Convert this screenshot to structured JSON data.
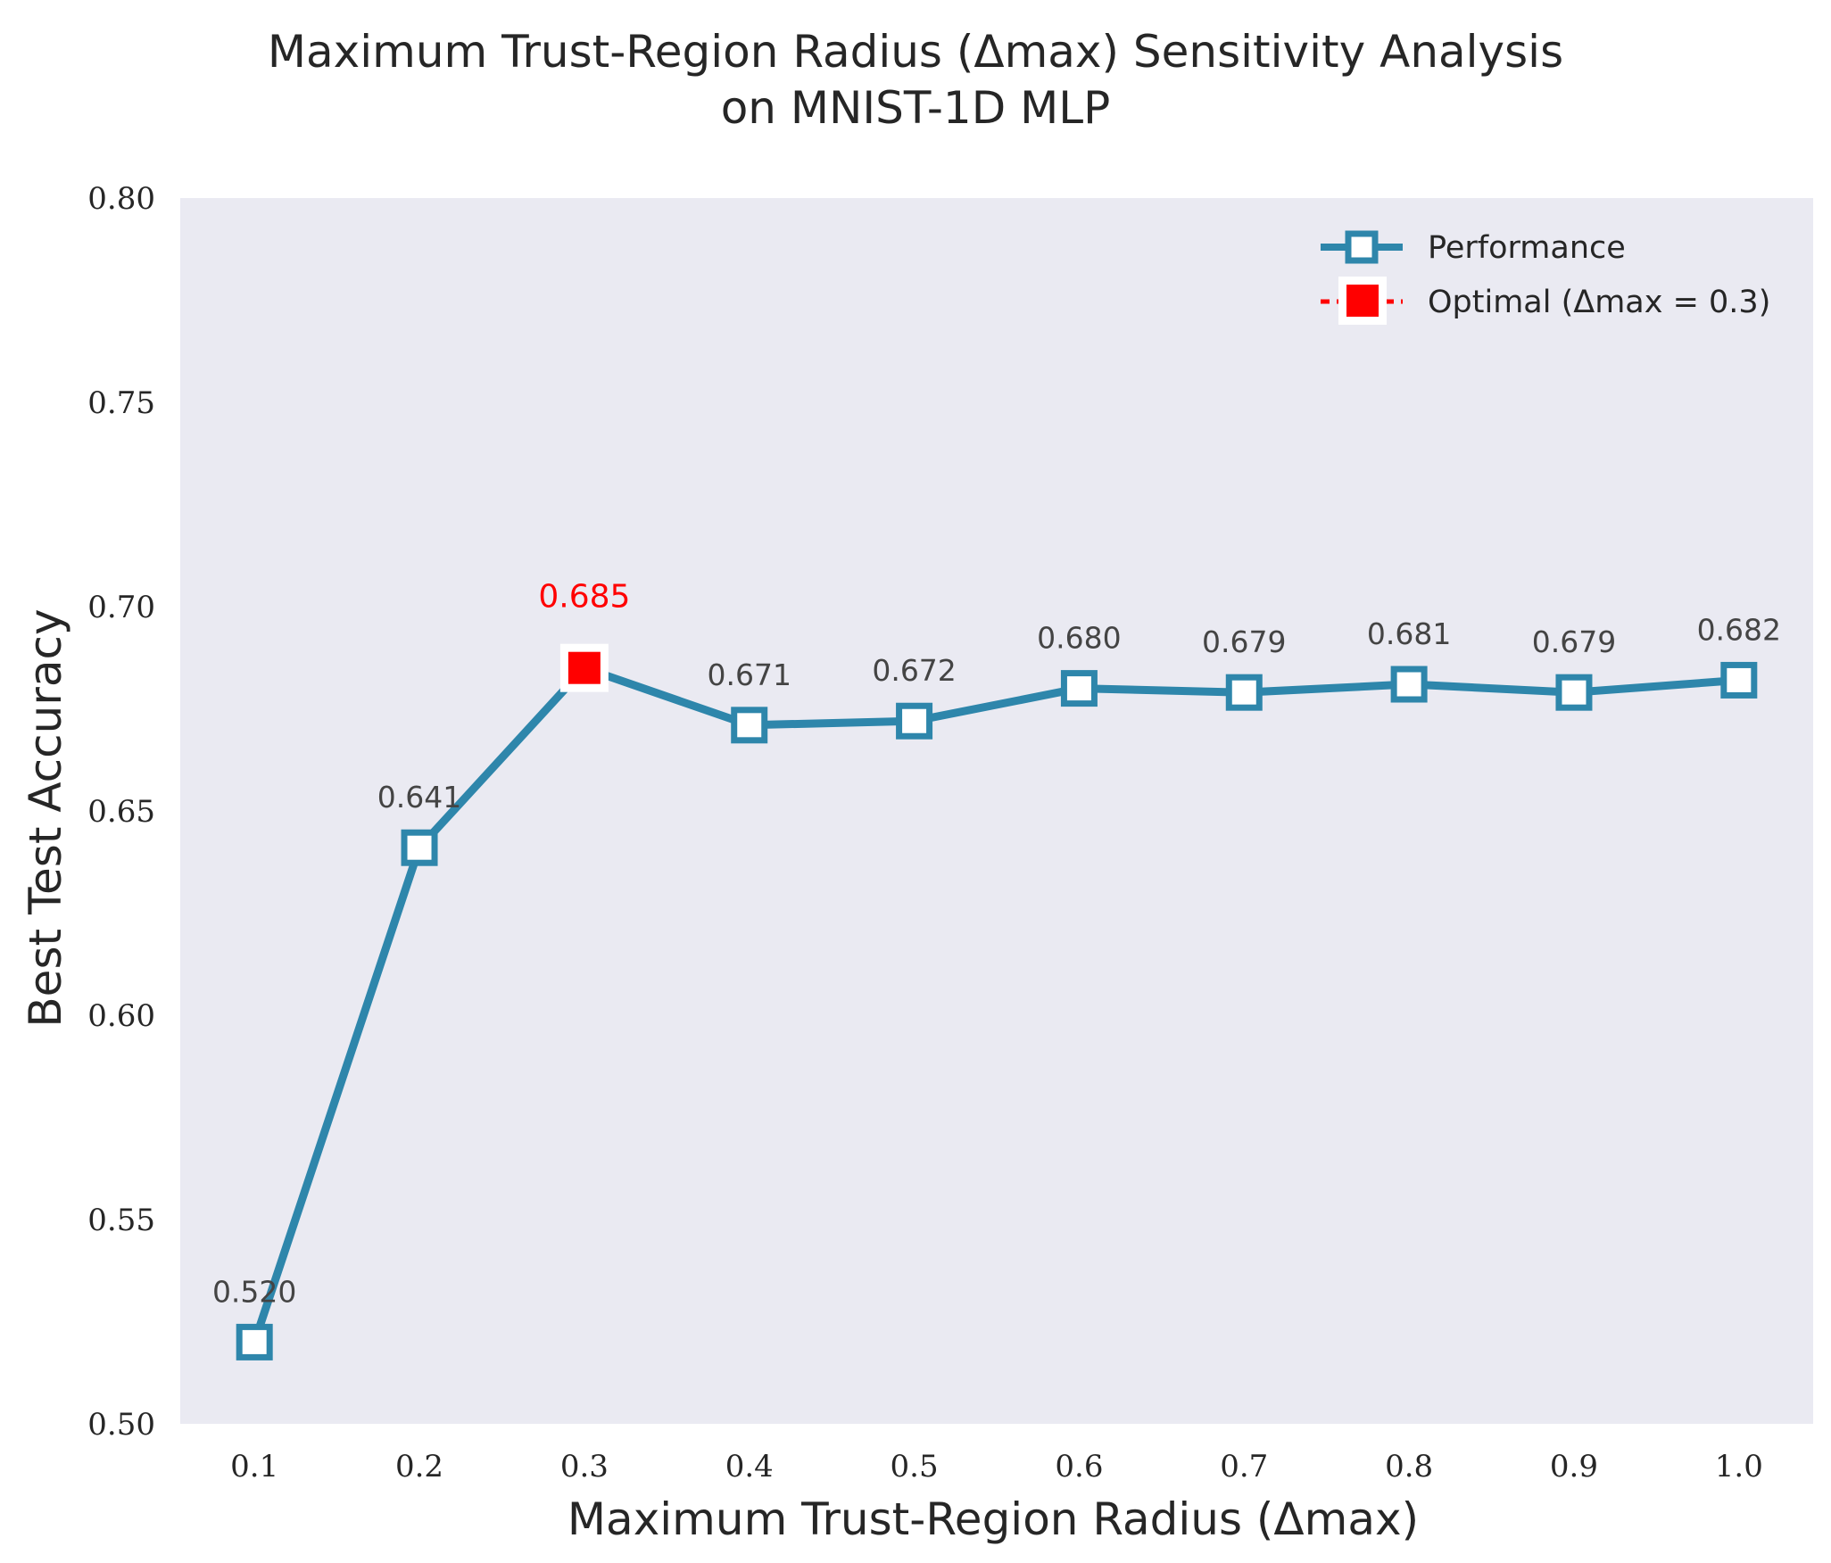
{
  "chart_data": {
    "type": "line",
    "title_line1": "Maximum Trust-Region Radius (Δmax) Sensitivity Analysis",
    "title_line2": "on MNIST-1D MLP",
    "xlabel": "Maximum Trust-Region Radius (Δmax)",
    "ylabel": "Best Test Accuracy",
    "x": [
      0.1,
      0.2,
      0.3,
      0.4,
      0.5,
      0.6,
      0.7,
      0.8,
      0.9,
      1.0
    ],
    "x_tick_labels": [
      "0.1",
      "0.2",
      "0.3",
      "0.4",
      "0.5",
      "0.6",
      "0.7",
      "0.8",
      "0.9",
      "1.0"
    ],
    "y_ticks": [
      0.5,
      0.55,
      0.6,
      0.65,
      0.7,
      0.75,
      0.8
    ],
    "y_tick_labels": [
      "0.50",
      "0.55",
      "0.60",
      "0.65",
      "0.70",
      "0.75",
      "0.80"
    ],
    "ylim": [
      0.5,
      0.8
    ],
    "xlim": [
      0.055,
      1.045
    ],
    "series": [
      {
        "name": "Performance",
        "values": [
          0.52,
          0.641,
          0.685,
          0.671,
          0.672,
          0.68,
          0.679,
          0.681,
          0.679,
          0.682
        ],
        "labels": [
          "0.520",
          "0.641",
          "0.685",
          "0.671",
          "0.672",
          "0.680",
          "0.679",
          "0.681",
          "0.679",
          "0.682"
        ],
        "color": "#2e86ab",
        "marker": "square-open"
      }
    ],
    "optimal": {
      "name": "Optimal (Δmax = 0.3)",
      "x": 0.3,
      "y": 0.685,
      "color": "#ff0000"
    },
    "legend_position": "top-right",
    "grid": false,
    "plot_background": "#eaeaf2"
  }
}
